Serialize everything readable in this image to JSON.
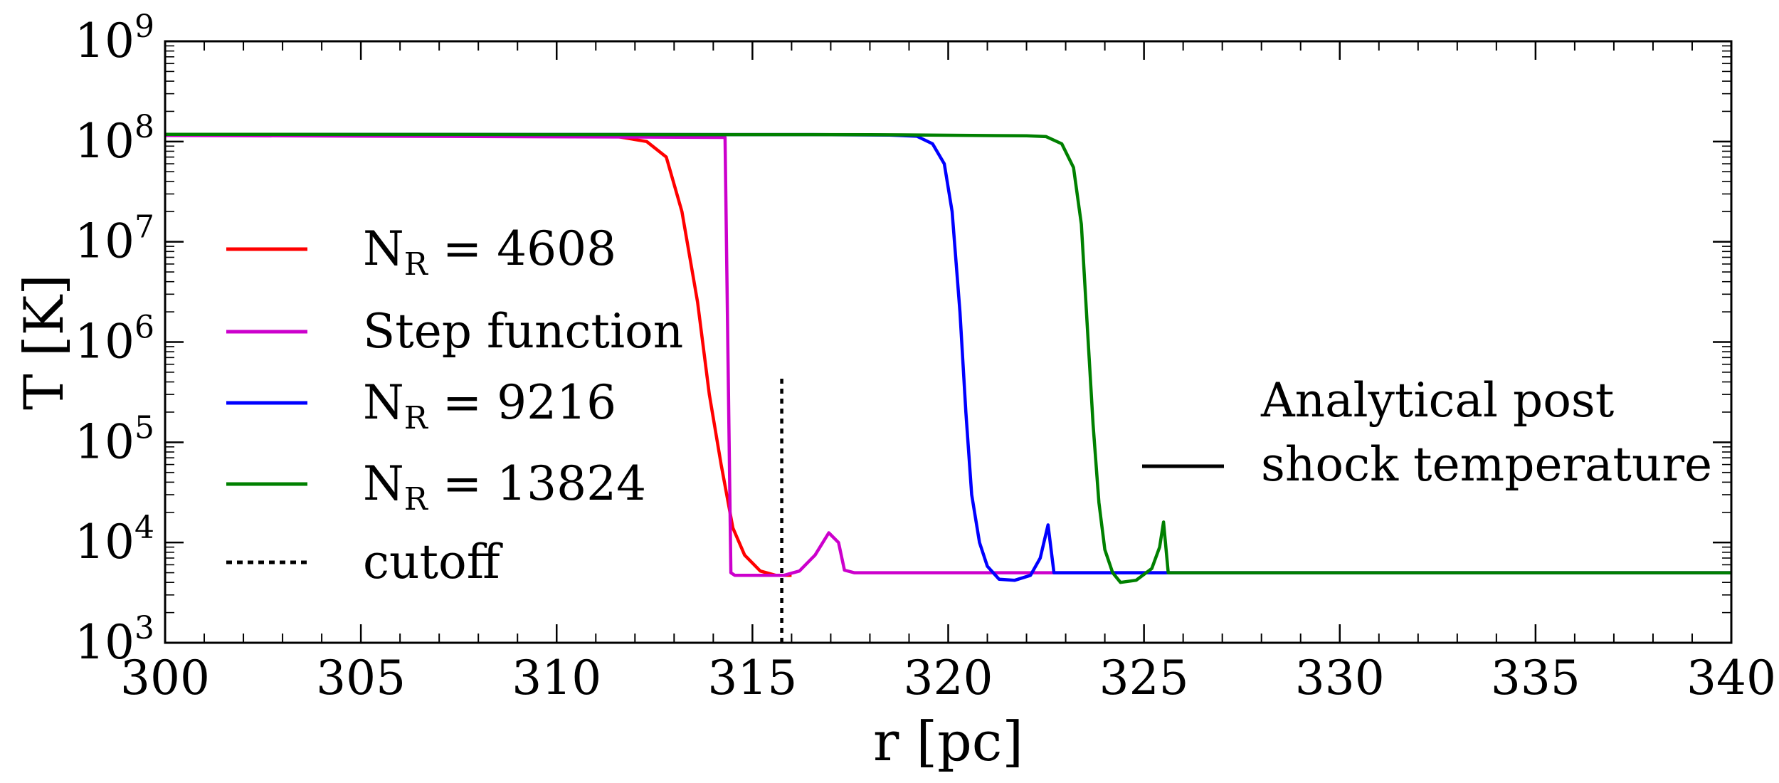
{
  "chart_data": {
    "type": "line",
    "title": "",
    "xlabel": "r [pc]",
    "ylabel": "T [K]",
    "xlim": [
      300,
      340
    ],
    "ylim": [
      1000,
      1000000000
    ],
    "yscale": "log",
    "x_ticks": [
      300,
      305,
      310,
      315,
      320,
      325,
      330,
      335,
      340
    ],
    "x_tick_labels": [
      "300",
      "305",
      "310",
      "315",
      "320",
      "325",
      "330",
      "335",
      "340"
    ],
    "y_ticks": [
      {
        "value": 1000,
        "base": "10",
        "exp": "3"
      },
      {
        "value": 10000,
        "base": "10",
        "exp": "4"
      },
      {
        "value": 100000,
        "base": "10",
        "exp": "5"
      },
      {
        "value": 1000000,
        "base": "10",
        "exp": "6"
      },
      {
        "value": 10000000,
        "base": "10",
        "exp": "7"
      },
      {
        "value": 100000000,
        "base": "10",
        "exp": "8"
      },
      {
        "value": 1000000000,
        "base": "10",
        "exp": "9"
      }
    ],
    "grid": false,
    "legend_placement": "center-left",
    "series": [
      {
        "name": "N_R = 4608",
        "label": {
          "base": "N",
          "sub": "R",
          "rest": " = 4608"
        },
        "color": "#ff0000",
        "dash": "solid",
        "points": [
          [
            300,
            118000000
          ],
          [
            306,
            116000000
          ],
          [
            310,
            114000000
          ],
          [
            311.5,
            113000000
          ],
          [
            312.3,
            100000000
          ],
          [
            312.8,
            70000000
          ],
          [
            313.2,
            20000000
          ],
          [
            313.6,
            2500000
          ],
          [
            313.9,
            300000
          ],
          [
            314.2,
            60000
          ],
          [
            314.5,
            14000
          ],
          [
            314.8,
            7500
          ],
          [
            315.2,
            5200
          ],
          [
            315.6,
            4700
          ],
          [
            316,
            4700
          ]
        ]
      },
      {
        "name": "Step function",
        "label": {
          "base": "Step function",
          "sub": "",
          "rest": ""
        },
        "color": "#cc00cc",
        "dash": "solid",
        "points": [
          [
            300,
            115000000
          ],
          [
            314.3,
            110000000
          ],
          [
            314.3,
            110000000
          ],
          [
            314.45,
            5000
          ],
          [
            314.55,
            4700
          ],
          [
            315.8,
            4700
          ],
          [
            316.2,
            5200
          ],
          [
            316.6,
            7500
          ],
          [
            316.95,
            12500
          ],
          [
            317.2,
            10000
          ],
          [
            317.35,
            5300
          ],
          [
            317.6,
            5000
          ],
          [
            340,
            5000
          ]
        ]
      },
      {
        "name": "N_R = 9216",
        "label": {
          "base": "N",
          "sub": "R",
          "rest": " = 9216"
        },
        "color": "#0000ff",
        "dash": "solid",
        "points": [
          [
            300,
            118000000
          ],
          [
            317,
            117000000
          ],
          [
            318.5,
            116000000
          ],
          [
            319.2,
            113000000
          ],
          [
            319.6,
            95000000
          ],
          [
            319.9,
            60000000
          ],
          [
            320.1,
            20000000
          ],
          [
            320.3,
            2000000
          ],
          [
            320.45,
            200000
          ],
          [
            320.6,
            30000
          ],
          [
            320.8,
            10000
          ],
          [
            321,
            5800
          ],
          [
            321.3,
            4300
          ],
          [
            321.7,
            4200
          ],
          [
            322.1,
            4700
          ],
          [
            322.35,
            7000
          ],
          [
            322.55,
            15000
          ],
          [
            322.7,
            5000
          ],
          [
            340,
            5000
          ]
        ]
      },
      {
        "name": "N_R = 13824",
        "label": {
          "base": "N",
          "sub": "R",
          "rest": " = 13824"
        },
        "color": "#008000",
        "dash": "solid",
        "points": [
          [
            300,
            118000000
          ],
          [
            318,
            117000000
          ],
          [
            322,
            114000000
          ],
          [
            322.5,
            112000000
          ],
          [
            322.9,
            95000000
          ],
          [
            323.2,
            55000000
          ],
          [
            323.4,
            15000000
          ],
          [
            323.55,
            1500000
          ],
          [
            323.7,
            150000
          ],
          [
            323.85,
            25000
          ],
          [
            324,
            8500
          ],
          [
            324.2,
            5000
          ],
          [
            324.4,
            4000
          ],
          [
            324.8,
            4200
          ],
          [
            325.2,
            5500
          ],
          [
            325.4,
            9000
          ],
          [
            325.5,
            16000
          ],
          [
            325.62,
            5000
          ],
          [
            340,
            5000
          ]
        ]
      },
      {
        "name": "cutoff",
        "label": {
          "base": "cutoff",
          "sub": "",
          "rest": ""
        },
        "color": "#000000",
        "dash": "dotted",
        "points": [
          [
            315.75,
            1000
          ],
          [
            315.75,
            480000
          ]
        ]
      }
    ],
    "annotation": {
      "lines": [
        "Analytical post",
        "shock temperature"
      ],
      "color": "#000000",
      "note": "solid black legend line with no data plotted"
    }
  }
}
